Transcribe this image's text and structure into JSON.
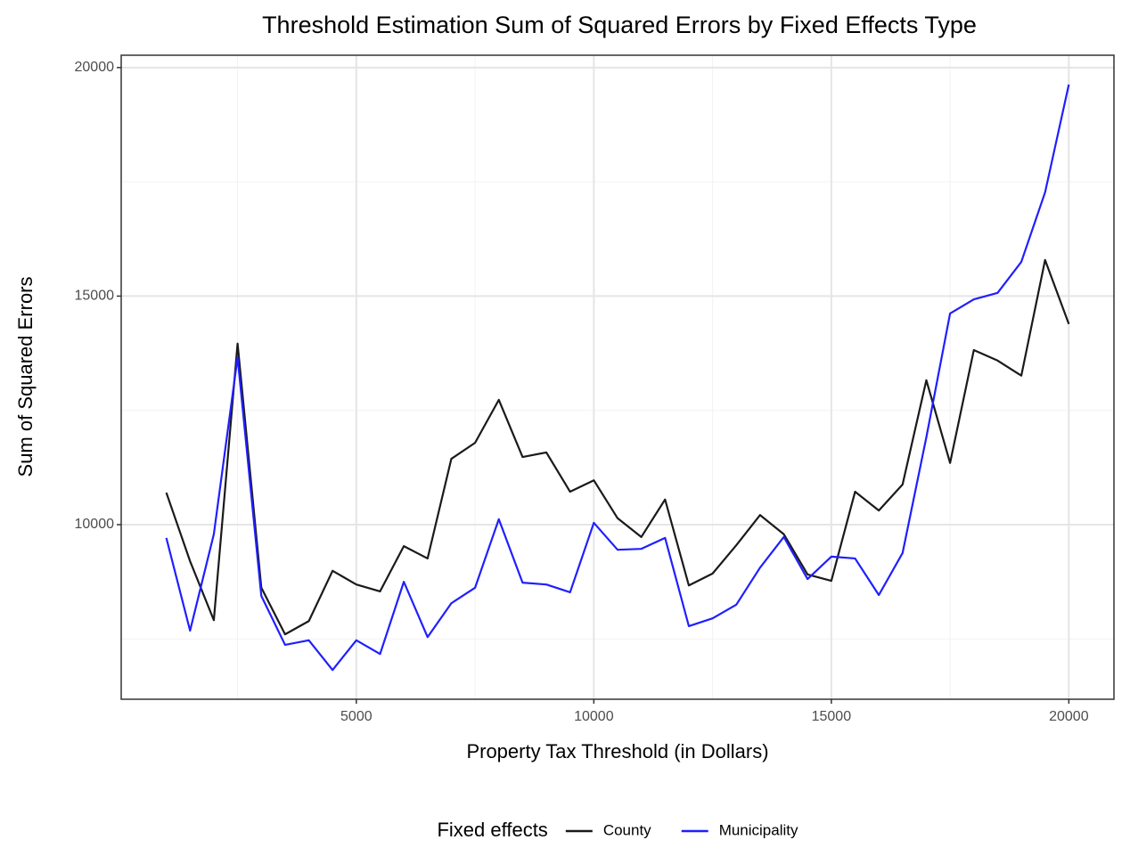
{
  "chart_data": {
    "type": "line",
    "title": "Threshold Estimation Sum of Squared Errors by Fixed Effects Type",
    "x_label": "Property Tax Threshold (in Dollars)",
    "y_label": "Sum of Squared Errors",
    "x": [
      1000,
      1500,
      2000,
      2500,
      3000,
      3500,
      4000,
      4500,
      5000,
      5500,
      6000,
      6500,
      7000,
      7500,
      8000,
      8500,
      9000,
      9500,
      10000,
      10500,
      11000,
      11500,
      12000,
      12500,
      13000,
      13500,
      14000,
      14500,
      15000,
      15500,
      16000,
      16500,
      17000,
      17500,
      18000,
      18500,
      19000,
      19500,
      20000
    ],
    "series": [
      {
        "name": "County",
        "color": "#1a1a1a",
        "values": [
          10700,
          9200,
          7910,
          13960,
          8620,
          7600,
          7890,
          8990,
          8690,
          8540,
          9530,
          9260,
          11440,
          11790,
          12730,
          11480,
          11580,
          10720,
          10970,
          10140,
          9730,
          10550,
          8670,
          8930,
          9550,
          10210,
          9790,
          8910,
          8770,
          10720,
          10310,
          10880,
          13160,
          11350,
          13820,
          13590,
          13260,
          15790,
          14390
        ]
      },
      {
        "name": "Municipality",
        "color": "#1f1fff",
        "values": [
          9710,
          7680,
          9790,
          13660,
          8440,
          7370,
          7470,
          6820,
          7470,
          7170,
          8750,
          7540,
          8280,
          8620,
          10120,
          8730,
          8690,
          8520,
          10040,
          9450,
          9470,
          9710,
          7780,
          7950,
          8250,
          9060,
          9730,
          8810,
          9300,
          9260,
          8460,
          9380,
          11910,
          14620,
          14930,
          15070,
          15750,
          17270,
          19630
        ]
      }
    ],
    "xlim": [
      50,
      20950
    ],
    "xticks": [
      5000,
      10000,
      15000,
      20000
    ],
    "ylim": [
      6180,
      20270
    ],
    "yticks": [
      10000,
      15000,
      20000
    ],
    "grid": true,
    "legend_title": "Fixed effects",
    "legend_position": "bottom"
  }
}
